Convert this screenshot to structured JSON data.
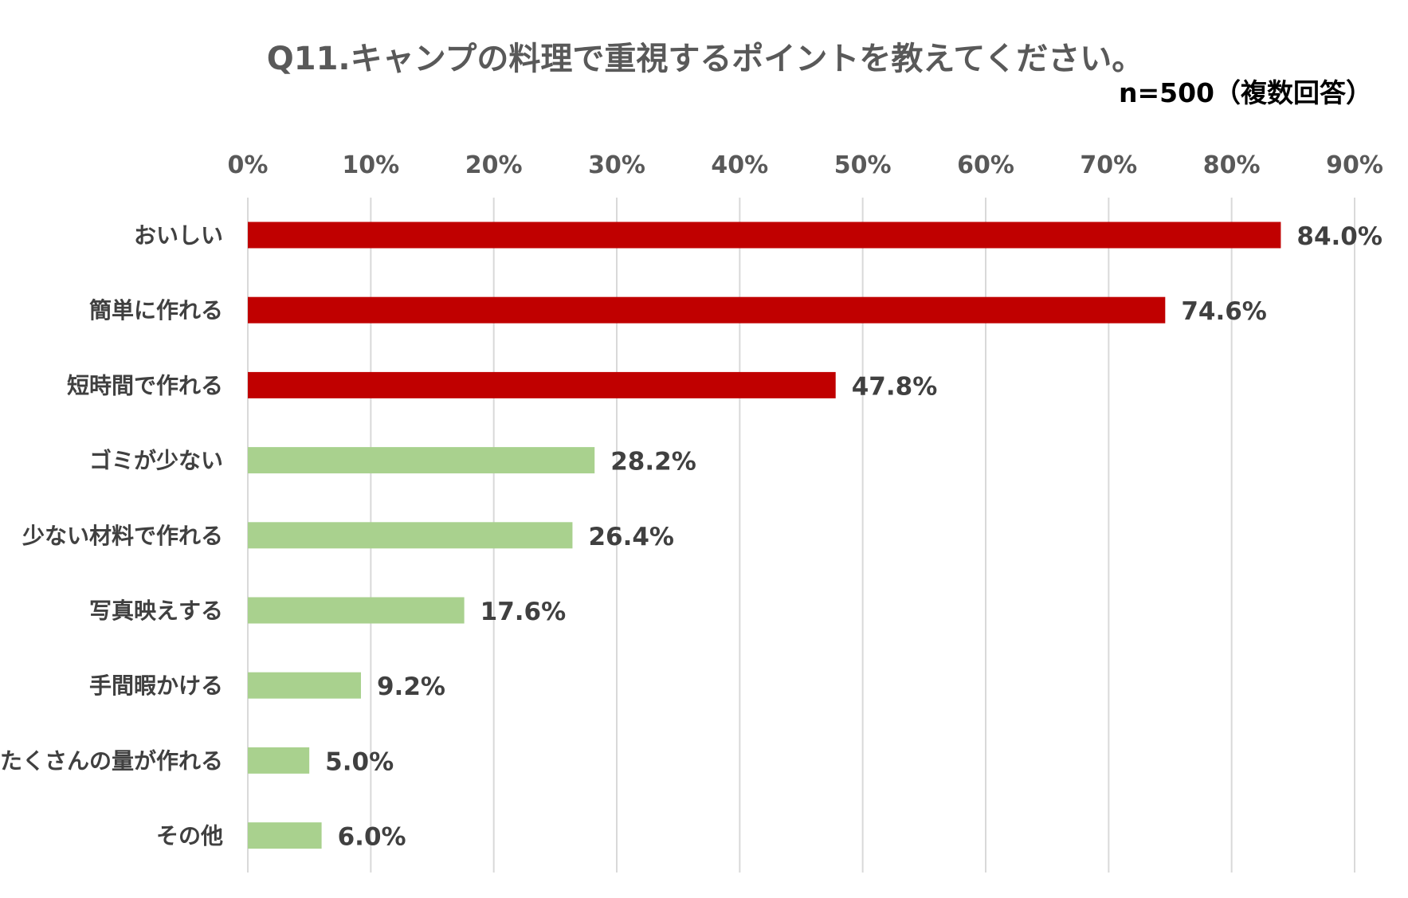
{
  "chart_data": {
    "type": "bar",
    "orientation": "horizontal",
    "title": "Q11.キャンプの料理で重視するポイントを教えてください。",
    "subtitle": "n=500（複数回答）",
    "xlabel": "",
    "ylabel": "",
    "xlim": [
      0,
      90
    ],
    "grid": true,
    "ticks": [
      0,
      10,
      20,
      30,
      40,
      50,
      60,
      70,
      80,
      90
    ],
    "tick_labels": [
      "0%",
      "10%",
      "20%",
      "30%",
      "40%",
      "50%",
      "60%",
      "70%",
      "80%",
      "90%"
    ],
    "categories": [
      "おいしい",
      "簡単に作れる",
      "短時間で作れる",
      "ゴミが少ない",
      "少ない材料で作れる",
      "写真映えする",
      "手間暇かける",
      "たくさんの量が作れる",
      "その他"
    ],
    "values": [
      84.0,
      74.6,
      47.8,
      28.2,
      26.4,
      17.6,
      9.2,
      5.0,
      6.0
    ],
    "value_labels": [
      "84.0%",
      "74.6%",
      "47.8%",
      "28.2%",
      "26.4%",
      "17.6%",
      "9.2%",
      "5.0%",
      "6.0%"
    ],
    "colors": [
      "#c00000",
      "#c00000",
      "#c00000",
      "#a9d18e",
      "#a9d18e",
      "#a9d18e",
      "#a9d18e",
      "#a9d18e",
      "#a9d18e"
    ]
  }
}
